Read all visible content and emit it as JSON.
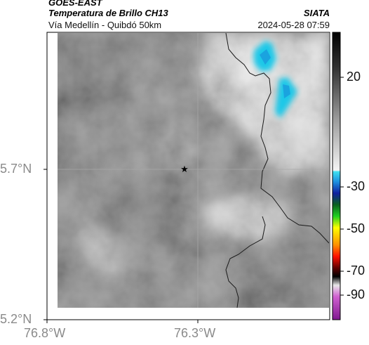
{
  "header": {
    "satellite": "GOES-EAST",
    "product": "Temperatura de Brillo CH13",
    "region": "Vía Medellín - Quibdó 50km",
    "org": "SIATA",
    "datetime": "2024-05-28 07:59"
  },
  "axes": {
    "y_ticks": [
      "5.7°N",
      "5.2°N"
    ],
    "x_ticks": [
      "76.8°W",
      "76.3°W"
    ]
  },
  "colorbar": {
    "labels": [
      "20",
      "-30",
      "-50",
      "-70",
      "-90"
    ]
  },
  "colors": {
    "cold_cloud": "#1ec8e8",
    "background_gray": "#7e7e7e"
  }
}
